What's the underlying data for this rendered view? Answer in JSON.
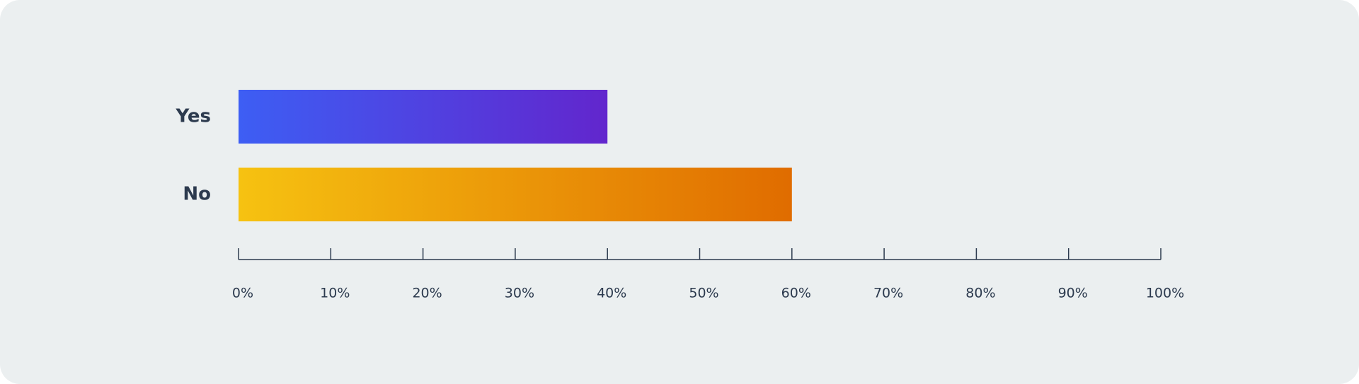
{
  "chart_data": {
    "type": "hbar",
    "categories": [
      "Yes",
      "No"
    ],
    "values": [
      40,
      60
    ],
    "colors": [
      [
        "#3d5ef4",
        "#6226cd"
      ],
      [
        "#f6c211",
        "#e06c00"
      ]
    ],
    "xlim": [
      0,
      100
    ],
    "xticks": [
      {
        "value": 0,
        "label": "0%"
      },
      {
        "value": 10,
        "label": "10%"
      },
      {
        "value": 20,
        "label": "20%"
      },
      {
        "value": 30,
        "label": "30%"
      },
      {
        "value": 40,
        "label": "40%"
      },
      {
        "value": 50,
        "label": "50%"
      },
      {
        "value": 60,
        "label": "60%"
      },
      {
        "value": 70,
        "label": "70%"
      },
      {
        "value": 80,
        "label": "80%"
      },
      {
        "value": 90,
        "label": "90%"
      },
      {
        "value": 100,
        "label": "100%"
      }
    ],
    "grid": false
  }
}
